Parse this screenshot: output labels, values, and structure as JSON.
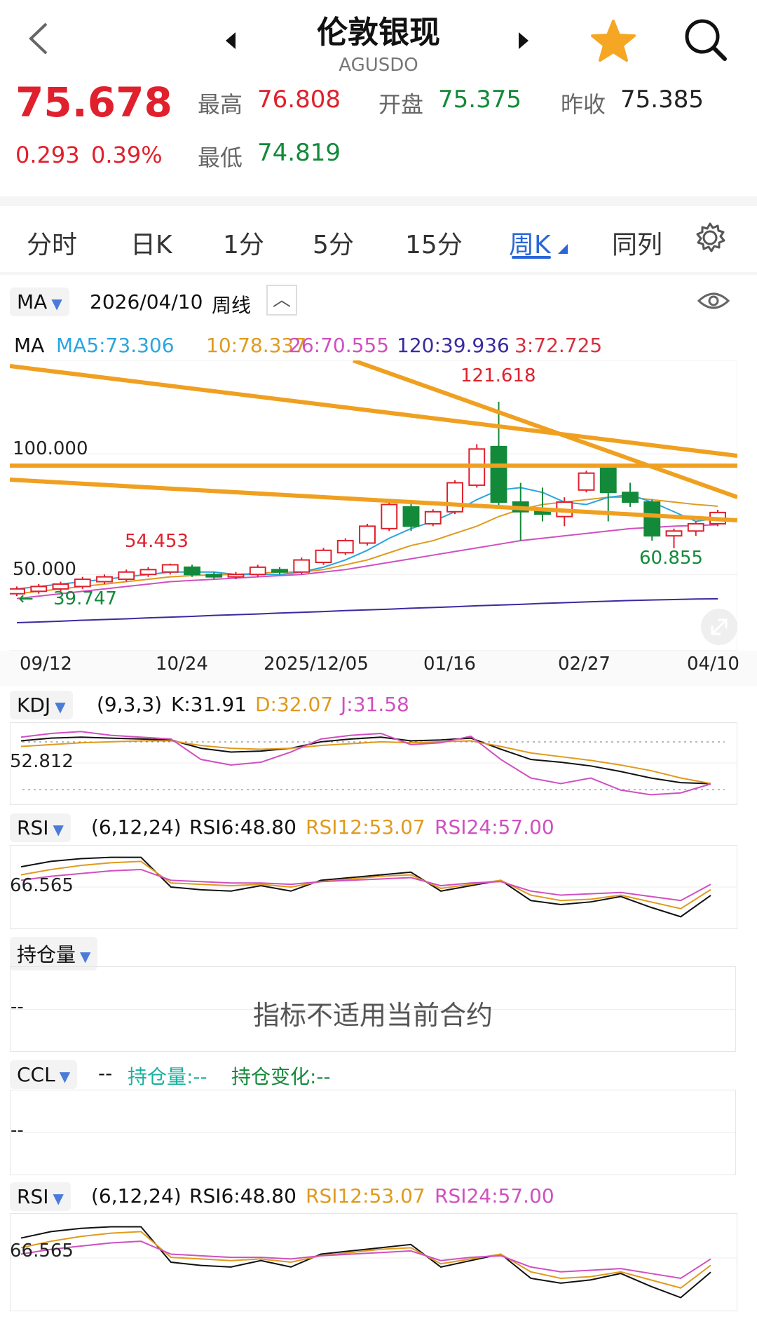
{
  "header": {
    "back_icon": "chevron-left-icon",
    "title": "伦敦银现",
    "code": "AGUSDO",
    "favorite_icon": "star-icon",
    "search_icon": "search-icon"
  },
  "quote": {
    "price": "75.678",
    "change": "0.293",
    "change_pct": "0.39%",
    "high_label": "最高",
    "high": "76.808",
    "low_label": "最低",
    "low": "74.819",
    "open_label": "开盘",
    "open": "75.375",
    "prev_label": "昨收",
    "prev": "75.385"
  },
  "tabs": [
    {
      "label": "分时"
    },
    {
      "label": "日K"
    },
    {
      "label": "1分"
    },
    {
      "label": "5分"
    },
    {
      "label": "15分"
    },
    {
      "label": "周K"
    },
    {
      "label": "同列"
    }
  ],
  "main_chart": {
    "indicator": "MA",
    "date": "2026/04/10",
    "period": "周线",
    "ma_label": "MA",
    "ma5": "MA5:73.306",
    "ma10": "10:78.337",
    "ma26": "26:70.555",
    "ma120": "120:39.936",
    "ma3": "3:72.725",
    "y_labels": [
      "100.000",
      "50.000"
    ],
    "max_label": "121.618",
    "marker_54": "54.453",
    "min_label": "60.855",
    "low_marker": "39.747",
    "x_labels": [
      "09/12",
      "10/24",
      "2025/12/05",
      "01/16",
      "02/27",
      "04/10"
    ]
  },
  "kdj": {
    "name": "KDJ",
    "params": "(9,3,3)",
    "k": "K:31.91",
    "d": "D:32.07",
    "j": "J:31.58",
    "y_label": "52.812"
  },
  "rsi": {
    "name": "RSI",
    "params": "(6,12,24)",
    "rsi6": "RSI6:48.80",
    "rsi12": "RSI12:53.07",
    "rsi24": "RSI24:57.00",
    "y_label": "66.565"
  },
  "oi": {
    "name": "持仓量",
    "dash": "--",
    "message": "指标不适用当前合约"
  },
  "ccl": {
    "name": "CCL",
    "dash": "--",
    "oi_label": "持仓量:--",
    "oi_change_label": "持仓变化:--",
    "left_dash": "--"
  },
  "rsi2": {
    "name": "RSI",
    "params": "(6,12,24)",
    "rsi6": "RSI6:48.80",
    "rsi12": "RSI12:53.07",
    "rsi24": "RSI24:57.00",
    "y_label": "66.565"
  },
  "chart_data": {
    "type": "candlestick",
    "title": "",
    "x_ticks": [
      "09/12",
      "10/24",
      "2025/12/05",
      "01/16",
      "02/27",
      "04/10"
    ],
    "y_ticks": [
      100,
      50
    ],
    "ylim": [
      30,
      130
    ],
    "candles": [
      {
        "o": 42,
        "c": 44,
        "h": 45,
        "l": 41
      },
      {
        "o": 43,
        "c": 45,
        "h": 46,
        "l": 42
      },
      {
        "o": 44,
        "c": 46,
        "h": 47,
        "l": 43
      },
      {
        "o": 45,
        "c": 48,
        "h": 49,
        "l": 44
      },
      {
        "o": 47,
        "c": 49,
        "h": 50,
        "l": 46
      },
      {
        "o": 48,
        "c": 51,
        "h": 52,
        "l": 47
      },
      {
        "o": 50,
        "c": 52,
        "h": 53,
        "l": 49
      },
      {
        "o": 51,
        "c": 54,
        "h": 54.5,
        "l": 50
      },
      {
        "o": 53,
        "c": 50,
        "h": 54,
        "l": 49
      },
      {
        "o": 50,
        "c": 49,
        "h": 51,
        "l": 48
      },
      {
        "o": 49,
        "c": 50,
        "h": 51,
        "l": 48
      },
      {
        "o": 50,
        "c": 53,
        "h": 54,
        "l": 49
      },
      {
        "o": 52,
        "c": 51,
        "h": 53,
        "l": 50
      },
      {
        "o": 51,
        "c": 56,
        "h": 57,
        "l": 50
      },
      {
        "o": 55,
        "c": 60,
        "h": 61,
        "l": 54
      },
      {
        "o": 59,
        "c": 64,
        "h": 65,
        "l": 58
      },
      {
        "o": 63,
        "c": 70,
        "h": 71,
        "l": 62
      },
      {
        "o": 69,
        "c": 79,
        "h": 80,
        "l": 68
      },
      {
        "o": 78,
        "c": 70,
        "h": 80,
        "l": 68
      },
      {
        "o": 71,
        "c": 76,
        "h": 77,
        "l": 70
      },
      {
        "o": 76,
        "c": 88,
        "h": 89,
        "l": 75
      },
      {
        "o": 87,
        "c": 102,
        "h": 104,
        "l": 86
      },
      {
        "o": 103,
        "c": 80,
        "h": 121.618,
        "l": 78
      },
      {
        "o": 80,
        "c": 76,
        "h": 88,
        "l": 64
      },
      {
        "o": 77,
        "c": 75,
        "h": 86,
        "l": 72
      },
      {
        "o": 74,
        "c": 80,
        "h": 82,
        "l": 70
      },
      {
        "o": 85,
        "c": 92,
        "h": 93,
        "l": 84
      },
      {
        "o": 94,
        "c": 84,
        "h": 96,
        "l": 72
      },
      {
        "o": 84,
        "c": 80,
        "h": 88,
        "l": 78
      },
      {
        "o": 80,
        "c": 66,
        "h": 81,
        "l": 64
      },
      {
        "o": 66,
        "c": 68,
        "h": 69,
        "l": 60.855
      },
      {
        "o": 68,
        "c": 71,
        "h": 72,
        "l": 66
      },
      {
        "o": 71,
        "c": 75.678,
        "h": 76.808,
        "l": 70
      }
    ],
    "ma5": [
      44,
      45,
      46,
      47,
      48,
      49,
      50,
      51,
      51,
      51,
      50,
      50,
      50,
      51,
      53,
      56,
      60,
      65,
      69,
      72,
      76,
      81,
      85,
      86,
      84,
      80,
      79,
      82,
      83,
      80,
      76,
      72,
      73.3
    ],
    "ma10": [
      42,
      43,
      44,
      45,
      46,
      47,
      48,
      49,
      49.5,
      49.8,
      50,
      50.5,
      51,
      51,
      52,
      54,
      56,
      59,
      62,
      64,
      67,
      70,
      74,
      77,
      79,
      80,
      81,
      82,
      82,
      81,
      80,
      79,
      78.3
    ],
    "ma26": [
      40,
      41,
      42,
      43,
      44,
      45,
      46,
      47,
      47.5,
      48,
      48.5,
      49,
      49.5,
      50,
      51,
      52,
      53.5,
      55,
      56.5,
      58,
      59.5,
      61,
      62.5,
      64,
      65,
      66,
      67,
      68,
      69,
      69.5,
      70,
      70.3,
      70.6
    ],
    "ma120": [
      30,
      30.3,
      30.6,
      31,
      31.3,
      31.6,
      32,
      32.3,
      32.6,
      33,
      33.3,
      33.6,
      34,
      34.3,
      34.6,
      35,
      35.3,
      35.6,
      36,
      36.3,
      36.6,
      37,
      37.3,
      37.6,
      38,
      38.3,
      38.6,
      38.9,
      39.2,
      39.4,
      39.6,
      39.8,
      39.9
    ],
    "kdj": {
      "k": [
        78,
        81,
        82,
        81,
        80,
        79,
        70,
        66,
        67,
        70,
        77,
        80,
        82,
        78,
        79,
        81,
        69,
        58,
        55,
        51,
        45,
        38,
        33,
        31.9
      ],
      "d": [
        72,
        74,
        76,
        77,
        78,
        78,
        73,
        70,
        69,
        70,
        73,
        75,
        77,
        76,
        77,
        78,
        72,
        65,
        61,
        57,
        52,
        46,
        38,
        32.1
      ],
      "j": [
        82,
        86,
        88,
        84,
        82,
        80,
        58,
        52,
        55,
        66,
        80,
        84,
        86,
        74,
        76,
        83,
        58,
        38,
        32,
        38,
        25,
        20,
        22,
        31.6
      ]
    },
    "rsi": {
      "rsi6": [
        70,
        74,
        76,
        77,
        77,
        55,
        53,
        52,
        56,
        52,
        60,
        62,
        64,
        66,
        52,
        56,
        60,
        45,
        42,
        44,
        48,
        40,
        33,
        48.8
      ],
      "rsi12": [
        64,
        68,
        71,
        73,
        74,
        58,
        57,
        56,
        57,
        55,
        59,
        61,
        63,
        64,
        54,
        57,
        60,
        49,
        45,
        46,
        49,
        44,
        39,
        53.1
      ],
      "rsi24": [
        60,
        63,
        65,
        67,
        68,
        60,
        59,
        58,
        58,
        57,
        59,
        60,
        61,
        62,
        56,
        58,
        59,
        52,
        49,
        50,
        51,
        48,
        45,
        57.0
      ]
    }
  },
  "colors": {
    "up": "#e0202c",
    "down": "#138a3a",
    "ma5": "#2aa6de",
    "ma10": "#e09a1e",
    "ma26": "#d050c0",
    "ma120": "#3a2aa0",
    "trend": "#f0a020",
    "rsi6": "#111111",
    "accent": "#2a66d9"
  }
}
